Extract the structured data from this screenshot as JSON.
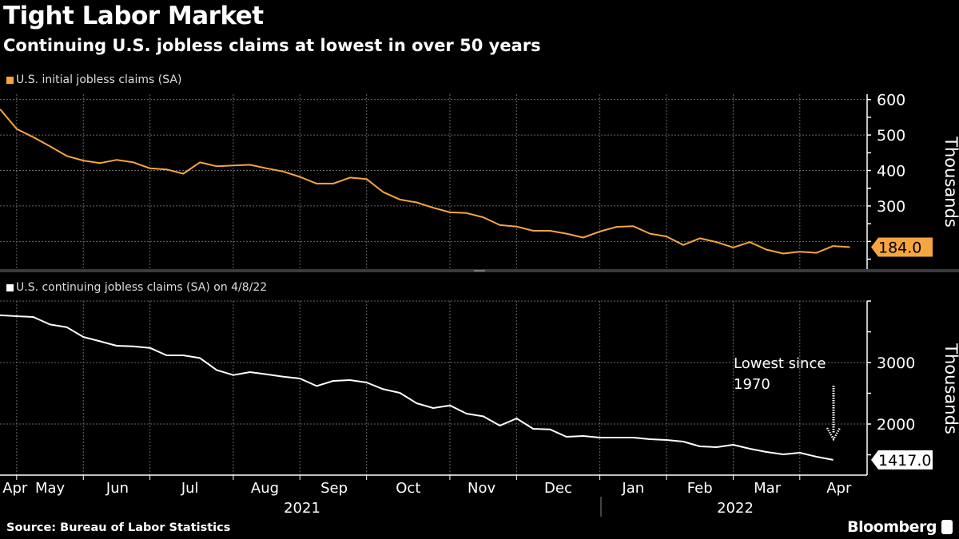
{
  "title": "Tight Labor Market",
  "subtitle": "Continuing U.S. jobless claims at lowest in over 50 years",
  "source": "Source: Bureau of Labor Statistics",
  "brand": "Bloomberg",
  "chart_data": [
    {
      "type": "line",
      "legend": "U.S. initial jobless claims (SA)",
      "ylabel": "Thousands",
      "ylim": [
        122,
        615
      ],
      "yticks": [
        "600",
        "500",
        "400",
        "300",
        "200"
      ],
      "grid": true,
      "color": "#f7a540",
      "last_value_label": "184.0",
      "x": [
        "2021-04-17",
        "2021-04-24",
        "2021-05-01",
        "2021-05-08",
        "2021-05-15",
        "2021-05-22",
        "2021-05-29",
        "2021-06-05",
        "2021-06-12",
        "2021-06-19",
        "2021-06-26",
        "2021-07-03",
        "2021-07-10",
        "2021-07-17",
        "2021-07-24",
        "2021-07-31",
        "2021-08-07",
        "2021-08-14",
        "2021-08-21",
        "2021-08-28",
        "2021-09-04",
        "2021-09-11",
        "2021-09-18",
        "2021-09-25",
        "2021-10-02",
        "2021-10-09",
        "2021-10-16",
        "2021-10-23",
        "2021-10-30",
        "2021-11-06",
        "2021-11-13",
        "2021-11-20",
        "2021-11-27",
        "2021-12-04",
        "2021-12-11",
        "2021-12-18",
        "2021-12-25",
        "2022-01-01",
        "2022-01-08",
        "2022-01-15",
        "2022-01-22",
        "2022-01-29",
        "2022-02-05",
        "2022-02-12",
        "2022-02-19",
        "2022-02-26",
        "2022-03-05",
        "2022-03-12",
        "2022-03-19",
        "2022-03-26",
        "2022-04-02",
        "2022-04-09"
      ],
      "values": [
        573,
        517,
        494,
        468,
        441,
        428,
        421,
        430,
        423,
        406,
        403,
        391,
        423,
        412,
        414,
        416,
        406,
        397,
        382,
        363,
        363,
        380,
        376,
        339,
        318,
        310,
        295,
        282,
        280,
        268,
        246,
        242,
        230,
        230,
        222,
        211,
        228,
        241,
        243,
        222,
        214,
        190,
        209,
        198,
        183,
        198,
        177,
        166,
        171,
        168,
        187,
        184
      ]
    },
    {
      "type": "line",
      "legend": "U.S. continuing jobless claims (SA) on 4/8/22",
      "ylabel": "Thousands",
      "ylim": [
        1169,
        4000
      ],
      "yticks": [
        "3000",
        "2000"
      ],
      "grid": true,
      "color": "#ffffff",
      "last_value_label": "1417.0",
      "annotation": "Lowest since\n1970",
      "annotation_lines": [
        "Lowest since",
        "1970"
      ],
      "values": [
        3770,
        3753,
        3740,
        3618,
        3575,
        3415,
        3346,
        3273,
        3264,
        3238,
        3117,
        3117,
        3073,
        2878,
        2796,
        2844,
        2809,
        2770,
        2740,
        2618,
        2701,
        2714,
        2675,
        2566,
        2506,
        2338,
        2260,
        2303,
        2169,
        2125,
        1974,
        2091,
        1922,
        1913,
        1792,
        1805,
        1779,
        1779,
        1779,
        1753,
        1740,
        1714,
        1636,
        1623,
        1662,
        1597,
        1545,
        1506,
        1532,
        1468,
        1417
      ]
    }
  ],
  "x_axis": {
    "months": [
      "Apr",
      "May",
      "Jun",
      "Jul",
      "Aug",
      "Sep",
      "Oct",
      "Nov",
      "Dec",
      "Jan",
      "Feb",
      "Mar",
      "Apr"
    ],
    "years": [
      "2021",
      "2022"
    ]
  }
}
